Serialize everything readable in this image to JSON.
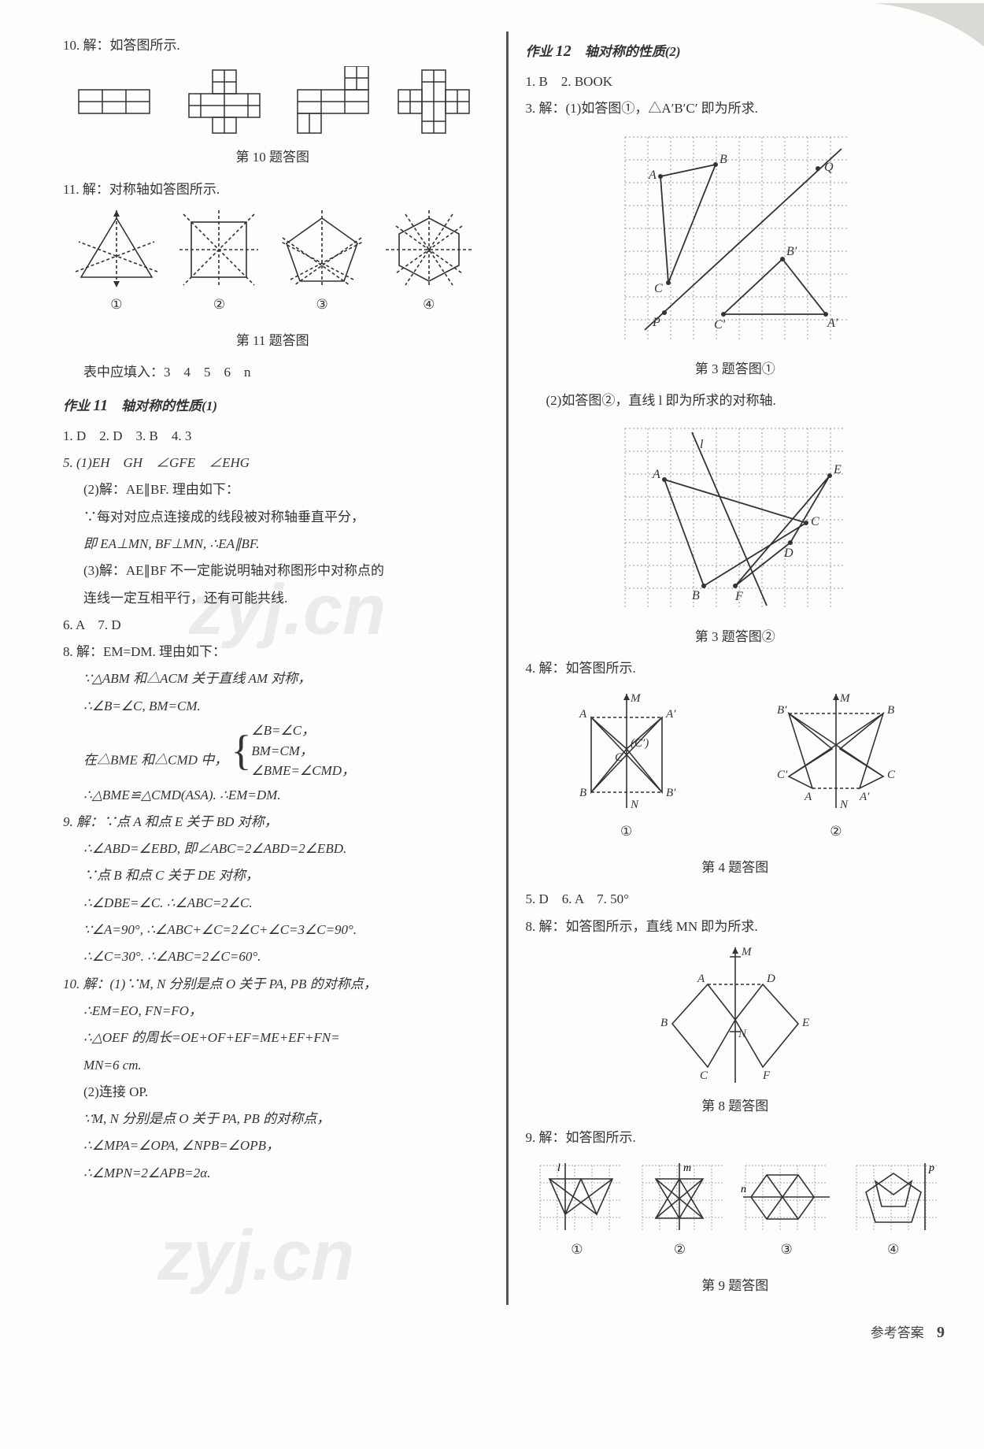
{
  "left": {
    "q10_intro": "10. 解：如答图所示.",
    "q10_caption": "第 10 题答图",
    "q11_intro": "11. 解：对称轴如答图所示.",
    "q11_labels": [
      "①",
      "②",
      "③",
      "④"
    ],
    "q11_caption": "第 11 题答图",
    "q11_fill": "表中应填入：3　4　5　6　n",
    "hw11_title_prefix": "作业 ",
    "hw11_num": "11",
    "hw11_title": "　轴对称的性质(1)",
    "a1to4": "1. D　2. D　3. B　4. 3",
    "a5_1": "5. (1)EH　GH　∠GFE　∠EHG",
    "a5_2a": "(2)解：AE∥BF. 理由如下：",
    "a5_2b": "∵每对对应点连接成的线段被对称轴垂直平分，",
    "a5_2c": "即 EA⊥MN, BF⊥MN, ∴EA∥BF.",
    "a5_3a": "(3)解：AE∥BF 不一定能说明轴对称图形中对称点的",
    "a5_3b": "连线一定互相平行，还有可能共线.",
    "a6_7": "6. A　7. D",
    "a8a": "8. 解：EM=DM. 理由如下：",
    "a8b": "∵△ABM 和△ACM 关于直线 AM 对称，",
    "a8c": "∴∠B=∠C, BM=CM.",
    "a8d_lead": "在△BME 和△CMD 中，",
    "a8d_items": [
      "∠B=∠C，",
      "BM=CM，",
      "∠BME=∠CMD，"
    ],
    "a8e": "∴△BME≌△CMD(ASA). ∴EM=DM.",
    "a9a": "9. 解：∵点 A 和点 E 关于 BD 对称，",
    "a9b": "∴∠ABD=∠EBD, 即∠ABC=2∠ABD=2∠EBD.",
    "a9c": "∵点 B 和点 C 关于 DE 对称，",
    "a9d": "∴∠DBE=∠C. ∴∠ABC=2∠C.",
    "a9e": "∵∠A=90°, ∴∠ABC+∠C=2∠C+∠C=3∠C=90°.",
    "a9f": "∴∠C=30°. ∴∠ABC=2∠C=60°.",
    "a10a": "10. 解：(1)∵M, N 分别是点 O 关于 PA, PB 的对称点，",
    "a10b": "∴EM=EO, FN=FO，",
    "a10c": "∴△OEF 的周长=OE+OF+EF=ME+EF+FN=",
    "a10d": "MN=6 cm.",
    "a10e": "(2)连接 OP.",
    "a10f": "∵M, N 分别是点 O 关于 PA, PB 的对称点，",
    "a10g": "∴∠MPA=∠OPA, ∠NPB=∠OPB，",
    "a10h": "∴∠MPN=2∠APB=2α."
  },
  "right": {
    "hw12_title_prefix": "作业 ",
    "hw12_num": "12",
    "hw12_title": "　轴对称的性质(2)",
    "a1_2": "1. B　2. BOOK",
    "a3_1": "3. 解：(1)如答图①，△A′B′C′ 即为所求.",
    "fig3_1_labels": {
      "A": "A",
      "B": "B",
      "C": "C",
      "P": "P",
      "Q": "Q",
      "A1": "A′",
      "B1": "B′",
      "C1": "C′"
    },
    "cap3_1": "第 3 题答图①",
    "a3_2": "(2)如答图②，直线 l 即为所求的对称轴.",
    "fig3_2_labels": {
      "A": "A",
      "B": "B",
      "C": "C",
      "D": "D",
      "E": "E",
      "F": "F",
      "l": "l"
    },
    "cap3_2": "第 3 题答图②",
    "a4": "4. 解：如答图所示.",
    "fig4_labels": {
      "M": "M",
      "N": "N",
      "A": "A",
      "B": "B",
      "C": "C",
      "A1": "A′",
      "B1": "B′",
      "C1": "C′"
    },
    "fig4_nums": [
      "①",
      "②"
    ],
    "cap4": "第 4 题答图",
    "a5_7": "5. D　6. A　7. 50°",
    "a8": "8. 解：如答图所示，直线 MN 即为所求.",
    "fig8_labels": {
      "A": "A",
      "B": "B",
      "C": "C",
      "D": "D",
      "E": "E",
      "F": "F",
      "M": "M",
      "N": "N"
    },
    "cap8": "第 8 题答图",
    "a9": "9. 解：如答图所示.",
    "fig9_labels": {
      "l": "l",
      "m": "m",
      "n": "n",
      "p": "p"
    },
    "fig9_nums": [
      "①",
      "②",
      "③",
      "④"
    ],
    "cap9": "第 9 题答图"
  },
  "footer_label": "参考答案",
  "footer_page": "9",
  "watermark1": "zyj.cn",
  "watermark2": "zyj.cn"
}
